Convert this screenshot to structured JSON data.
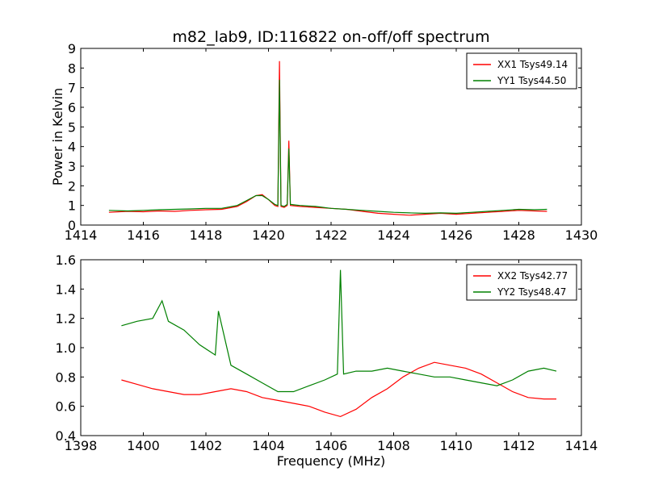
{
  "chart_data": [
    {
      "type": "line",
      "title": "m82_lab9, ID:116822 on-off/off spectrum",
      "xlabel": "",
      "ylabel": "Power in Kelvin",
      "xlim": [
        1414,
        1430
      ],
      "ylim": [
        0,
        9
      ],
      "xticks": [
        "1414",
        "1416",
        "1418",
        "1420",
        "1422",
        "1424",
        "1426",
        "1428",
        "1430"
      ],
      "yticks": [
        "0",
        "1",
        "2",
        "3",
        "4",
        "5",
        "6",
        "7",
        "8",
        "9"
      ],
      "legend_position": "top-right",
      "series": [
        {
          "name": "XX1 Tsys49.14",
          "color": "#ff0000",
          "x": [
            1414.9,
            1415.5,
            1416.0,
            1416.5,
            1417.0,
            1417.5,
            1418.0,
            1418.5,
            1419.0,
            1419.3,
            1419.6,
            1419.8,
            1420.0,
            1420.2,
            1420.3,
            1420.35,
            1420.4,
            1420.5,
            1420.6,
            1420.65,
            1420.7,
            1421.0,
            1421.5,
            1422.0,
            1422.5,
            1423.0,
            1423.5,
            1424.0,
            1424.5,
            1425.0,
            1425.5,
            1426.0,
            1426.5,
            1427.0,
            1427.5,
            1428.0,
            1428.5,
            1428.9
          ],
          "y": [
            0.65,
            0.7,
            0.68,
            0.72,
            0.7,
            0.75,
            0.78,
            0.8,
            0.95,
            1.2,
            1.5,
            1.55,
            1.3,
            1.0,
            0.95,
            8.35,
            0.95,
            0.9,
            1.0,
            4.3,
            1.0,
            0.95,
            0.9,
            0.85,
            0.8,
            0.7,
            0.6,
            0.55,
            0.5,
            0.55,
            0.6,
            0.55,
            0.6,
            0.65,
            0.7,
            0.75,
            0.72,
            0.7
          ]
        },
        {
          "name": "YY1 Tsys44.50",
          "color": "#008000",
          "x": [
            1414.9,
            1415.5,
            1416.0,
            1416.5,
            1417.0,
            1417.5,
            1418.0,
            1418.5,
            1419.0,
            1419.3,
            1419.6,
            1419.8,
            1420.0,
            1420.2,
            1420.3,
            1420.35,
            1420.4,
            1420.5,
            1420.6,
            1420.65,
            1420.7,
            1421.0,
            1421.5,
            1422.0,
            1422.5,
            1423.0,
            1423.5,
            1424.0,
            1424.5,
            1425.0,
            1425.5,
            1426.0,
            1426.5,
            1427.0,
            1427.5,
            1428.0,
            1428.5,
            1428.9
          ],
          "y": [
            0.75,
            0.72,
            0.75,
            0.78,
            0.8,
            0.82,
            0.85,
            0.85,
            1.0,
            1.25,
            1.5,
            1.5,
            1.3,
            1.05,
            1.0,
            7.4,
            1.0,
            0.95,
            1.05,
            3.9,
            1.05,
            1.0,
            0.95,
            0.85,
            0.8,
            0.75,
            0.7,
            0.65,
            0.62,
            0.6,
            0.62,
            0.6,
            0.65,
            0.7,
            0.75,
            0.8,
            0.78,
            0.8
          ]
        }
      ]
    },
    {
      "type": "line",
      "title": "",
      "xlabel": "Frequency (MHz)",
      "ylabel": "",
      "xlim": [
        1398,
        1414
      ],
      "ylim": [
        0.4,
        1.6
      ],
      "xticks": [
        "1398",
        "1400",
        "1402",
        "1404",
        "1406",
        "1408",
        "1410",
        "1412",
        "1414"
      ],
      "yticks": [
        "0.4",
        "0.6",
        "0.8",
        "1.0",
        "1.2",
        "1.4",
        "1.6"
      ],
      "legend_position": "top-right",
      "series": [
        {
          "name": "XX2 Tsys42.77",
          "color": "#ff0000",
          "x": [
            1399.3,
            1399.8,
            1400.3,
            1400.8,
            1401.3,
            1401.8,
            1402.3,
            1402.8,
            1403.3,
            1403.8,
            1404.3,
            1404.8,
            1405.3,
            1405.8,
            1406.3,
            1406.8,
            1407.3,
            1407.8,
            1408.3,
            1408.8,
            1409.3,
            1409.8,
            1410.3,
            1410.8,
            1411.3,
            1411.8,
            1412.3,
            1412.8,
            1413.2
          ],
          "y": [
            0.78,
            0.75,
            0.72,
            0.7,
            0.68,
            0.68,
            0.7,
            0.72,
            0.7,
            0.66,
            0.64,
            0.62,
            0.6,
            0.56,
            0.53,
            0.58,
            0.66,
            0.72,
            0.8,
            0.86,
            0.9,
            0.88,
            0.86,
            0.82,
            0.76,
            0.7,
            0.66,
            0.65,
            0.65
          ]
        },
        {
          "name": "YY2 Tsys48.47",
          "color": "#008000",
          "x": [
            1399.3,
            1399.8,
            1400.3,
            1400.6,
            1400.8,
            1401.3,
            1401.8,
            1402.3,
            1402.4,
            1402.8,
            1403.3,
            1403.8,
            1404.3,
            1404.8,
            1405.3,
            1405.8,
            1406.2,
            1406.3,
            1406.4,
            1406.8,
            1407.3,
            1407.8,
            1408.3,
            1408.8,
            1409.3,
            1409.8,
            1410.3,
            1410.8,
            1411.3,
            1411.8,
            1412.3,
            1412.8,
            1413.2
          ],
          "y": [
            1.15,
            1.18,
            1.2,
            1.32,
            1.18,
            1.12,
            1.02,
            0.95,
            1.25,
            0.88,
            0.82,
            0.76,
            0.7,
            0.7,
            0.74,
            0.78,
            0.82,
            1.53,
            0.82,
            0.84,
            0.84,
            0.86,
            0.84,
            0.82,
            0.8,
            0.8,
            0.78,
            0.76,
            0.74,
            0.78,
            0.84,
            0.86,
            0.84
          ]
        }
      ]
    }
  ]
}
